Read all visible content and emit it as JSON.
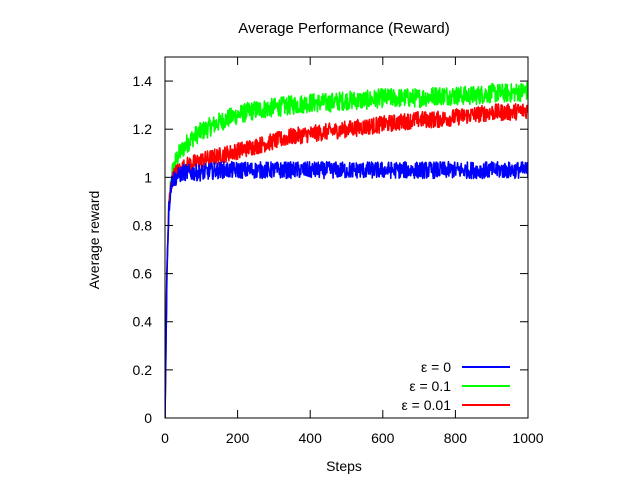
{
  "chart_data": {
    "type": "line",
    "title": "Average Performance (Reward)",
    "xlabel": "Steps",
    "ylabel": "Average reward",
    "xlim": [
      0,
      1000
    ],
    "ylim": [
      0,
      1.5
    ],
    "xticks": [
      0,
      200,
      400,
      600,
      800,
      1000
    ],
    "xtick_labels": [
      "0",
      "200",
      "400",
      "600",
      "800",
      "1000"
    ],
    "yticks": [
      0,
      0.2,
      0.4,
      0.6,
      0.8,
      1.0,
      1.2,
      1.4
    ],
    "ytick_labels": [
      "0",
      "0.2",
      "0.4",
      "0.6",
      "0.8",
      "1",
      "1.2",
      "1.4"
    ],
    "grid": false,
    "legend_position": "bottom-right",
    "series": [
      {
        "name": "ε = 0",
        "color": "#0000ff",
        "x": [
          0,
          5,
          10,
          15,
          20,
          30,
          40,
          50,
          60,
          80,
          100,
          150,
          200,
          250,
          300,
          350,
          400,
          450,
          500,
          550,
          600,
          650,
          700,
          750,
          800,
          850,
          900,
          950,
          1000
        ],
        "y": [
          0.0,
          0.6,
          0.85,
          0.95,
          0.99,
          1.0,
          1.01,
          1.02,
          1.02,
          1.02,
          1.02,
          1.03,
          1.03,
          1.03,
          1.03,
          1.03,
          1.03,
          1.03,
          1.03,
          1.03,
          1.03,
          1.03,
          1.03,
          1.03,
          1.03,
          1.03,
          1.03,
          1.03,
          1.03
        ]
      },
      {
        "name": "ε = 0.1",
        "color": "#00ff00",
        "x": [
          0,
          5,
          10,
          15,
          20,
          30,
          40,
          50,
          60,
          80,
          100,
          150,
          200,
          250,
          300,
          350,
          400,
          450,
          500,
          550,
          600,
          650,
          700,
          750,
          800,
          850,
          900,
          950,
          1000
        ],
        "y": [
          0.0,
          0.55,
          0.85,
          0.96,
          1.02,
          1.07,
          1.1,
          1.12,
          1.14,
          1.17,
          1.19,
          1.23,
          1.26,
          1.28,
          1.29,
          1.3,
          1.31,
          1.31,
          1.32,
          1.32,
          1.33,
          1.33,
          1.33,
          1.34,
          1.34,
          1.34,
          1.35,
          1.35,
          1.36
        ]
      },
      {
        "name": "ε = 0.01",
        "color": "#ff0000",
        "x": [
          0,
          5,
          10,
          15,
          20,
          30,
          40,
          50,
          60,
          80,
          100,
          150,
          200,
          250,
          300,
          350,
          400,
          450,
          500,
          550,
          600,
          650,
          700,
          750,
          800,
          850,
          900,
          950,
          1000
        ],
        "y": [
          0.0,
          0.58,
          0.86,
          0.95,
          0.99,
          1.02,
          1.03,
          1.04,
          1.05,
          1.06,
          1.07,
          1.09,
          1.11,
          1.13,
          1.15,
          1.17,
          1.18,
          1.19,
          1.2,
          1.21,
          1.22,
          1.23,
          1.24,
          1.24,
          1.25,
          1.26,
          1.27,
          1.27,
          1.28
        ]
      }
    ],
    "noise_amplitude": [
      0.035,
      0.04,
      0.035
    ]
  }
}
